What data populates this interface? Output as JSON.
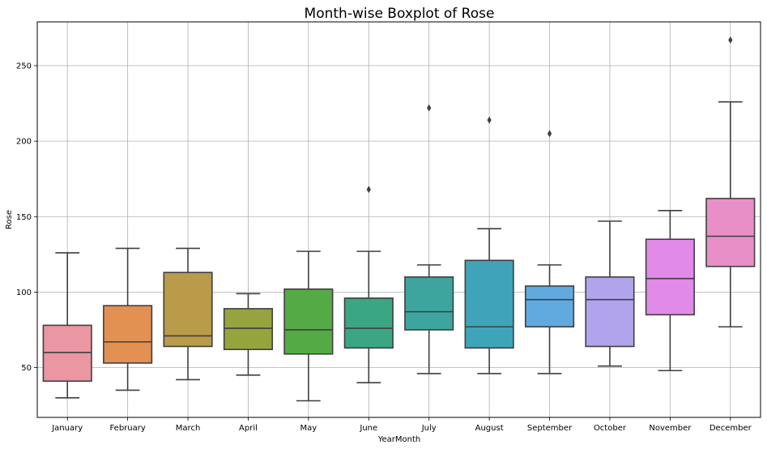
{
  "chart_data": {
    "type": "boxplot",
    "title": "Month-wise Boxplot of Rose",
    "xlabel": "YearMonth",
    "ylabel": "Rose",
    "ylim": [
      17,
      279
    ],
    "yticks": [
      50,
      100,
      150,
      200,
      250
    ],
    "grid": true,
    "categories": [
      "January",
      "February",
      "March",
      "April",
      "May",
      "June",
      "July",
      "August",
      "September",
      "October",
      "November",
      "December"
    ],
    "boxes": [
      {
        "whislo": 30,
        "q1": 41,
        "med": 60,
        "q3": 78,
        "whishi": 126,
        "fliers": [],
        "color": "#ea96a3"
      },
      {
        "whislo": 35,
        "q1": 53,
        "med": 67,
        "q3": 91,
        "whishi": 129,
        "fliers": [],
        "color": "#e29152"
      },
      {
        "whislo": 42,
        "q1": 64,
        "med": 71,
        "q3": 113,
        "whishi": 129,
        "fliers": [],
        "color": "#b99b49"
      },
      {
        "whislo": 45,
        "q1": 62,
        "med": 76,
        "q3": 89,
        "whishi": 99,
        "fliers": [],
        "color": "#97a43d"
      },
      {
        "whislo": 28,
        "q1": 59,
        "med": 75,
        "q3": 102,
        "whishi": 127,
        "fliers": [],
        "color": "#54ab45"
      },
      {
        "whislo": 40,
        "q1": 63,
        "med": 76,
        "q3": 96,
        "whishi": 127,
        "fliers": [
          168
        ],
        "color": "#3ba683"
      },
      {
        "whislo": 46,
        "q1": 75,
        "med": 87,
        "q3": 110,
        "whishi": 118,
        "fliers": [
          222
        ],
        "color": "#3da59e"
      },
      {
        "whislo": 46,
        "q1": 63,
        "med": 77,
        "q3": 121,
        "whishi": 142,
        "fliers": [
          214
        ],
        "color": "#3fa4b7"
      },
      {
        "whislo": 46,
        "q1": 77,
        "med": 95,
        "q3": 104,
        "whishi": 118,
        "fliers": [
          205
        ],
        "color": "#61aae0"
      },
      {
        "whislo": 51,
        "q1": 64,
        "med": 95,
        "q3": 110,
        "whishi": 147,
        "fliers": [],
        "color": "#b1a4ec"
      },
      {
        "whislo": 48,
        "q1": 85,
        "med": 109,
        "q3": 135,
        "whishi": 154,
        "fliers": [],
        "color": "#e18ae8"
      },
      {
        "whislo": 77,
        "q1": 117,
        "med": 137,
        "q3": 162,
        "whishi": 226,
        "fliers": [
          267
        ],
        "color": "#e98fc7"
      }
    ]
  }
}
